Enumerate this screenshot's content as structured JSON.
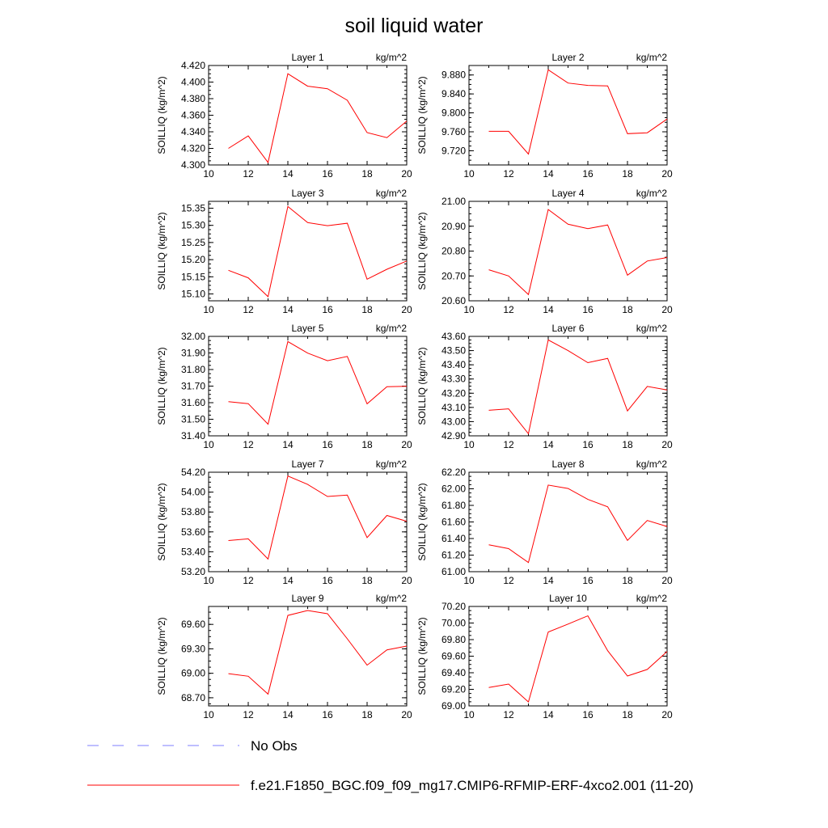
{
  "figure": {
    "title": "soil liquid water",
    "x_ticks": [
      10,
      12,
      14,
      16,
      18,
      20
    ],
    "ylabel": "SOILLIQ  (kg/m^2)",
    "unit_label": "kg/m^2"
  },
  "legend": {
    "obs_label": "No Obs",
    "model_label": "f.e21.F1850_BGC.f09_f09_mg17.CMIP6-RFMIP-ERF-4xco2.001 (11-20)",
    "obs_color": "#9999ff",
    "model_color": "#ff0000"
  },
  "chart_data": [
    {
      "type": "line",
      "title": "Layer 1",
      "xlim": [
        10,
        20
      ],
      "ylim": [
        4.3,
        4.42
      ],
      "y_ticks": [
        4.3,
        4.32,
        4.34,
        4.36,
        4.38,
        4.4,
        4.42
      ],
      "y_tick_labels": [
        "4.300",
        "4.320",
        "4.340",
        "4.360",
        "4.380",
        "4.400",
        "4.420"
      ],
      "x": [
        11,
        12,
        13,
        14,
        15,
        16,
        17,
        18,
        19,
        20
      ],
      "values": [
        4.32,
        4.335,
        4.303,
        4.41,
        4.395,
        4.392,
        4.378,
        4.339,
        4.333,
        4.353
      ]
    },
    {
      "type": "line",
      "title": "Layer 2",
      "xlim": [
        10,
        20
      ],
      "ylim": [
        9.69,
        9.9
      ],
      "y_ticks": [
        9.72,
        9.76,
        9.8,
        9.84,
        9.88
      ],
      "y_tick_labels": [
        "9.720",
        "9.760",
        "9.800",
        "9.840",
        "9.880"
      ],
      "x": [
        11,
        12,
        13,
        14,
        15,
        16,
        17,
        18,
        19,
        20
      ],
      "values": [
        9.761,
        9.761,
        9.713,
        9.891,
        9.863,
        9.858,
        9.857,
        9.756,
        9.758,
        9.787
      ]
    },
    {
      "type": "line",
      "title": "Layer 3",
      "xlim": [
        10,
        20
      ],
      "ylim": [
        15.08,
        15.37
      ],
      "y_ticks": [
        15.1,
        15.15,
        15.2,
        15.25,
        15.3,
        15.35
      ],
      "y_tick_labels": [
        "15.10",
        "15.15",
        "15.20",
        "15.25",
        "15.30",
        "15.35"
      ],
      "x": [
        11,
        12,
        13,
        14,
        15,
        16,
        17,
        18,
        19,
        20
      ],
      "values": [
        15.169,
        15.147,
        15.092,
        15.355,
        15.308,
        15.299,
        15.306,
        15.143,
        15.172,
        15.196
      ]
    },
    {
      "type": "line",
      "title": "Layer 4",
      "xlim": [
        10,
        20
      ],
      "ylim": [
        20.6,
        21.0
      ],
      "y_ticks": [
        20.6,
        20.7,
        20.8,
        20.9,
        21.0
      ],
      "y_tick_labels": [
        "20.60",
        "20.70",
        "20.80",
        "20.90",
        "21.00"
      ],
      "x": [
        11,
        12,
        13,
        14,
        15,
        16,
        17,
        18,
        19,
        20
      ],
      "values": [
        20.725,
        20.7,
        20.625,
        20.967,
        20.908,
        20.89,
        20.905,
        20.703,
        20.76,
        20.774
      ]
    },
    {
      "type": "line",
      "title": "Layer 5",
      "xlim": [
        10,
        20
      ],
      "ylim": [
        31.4,
        32.0
      ],
      "y_ticks": [
        31.4,
        31.5,
        31.6,
        31.7,
        31.8,
        31.9,
        32.0
      ],
      "y_tick_labels": [
        "31.40",
        "31.50",
        "31.60",
        "31.70",
        "31.80",
        "31.90",
        "32.00"
      ],
      "x": [
        11,
        12,
        13,
        14,
        15,
        16,
        17,
        18,
        19,
        20
      ],
      "values": [
        31.606,
        31.594,
        31.47,
        31.969,
        31.899,
        31.853,
        31.879,
        31.593,
        31.696,
        31.699
      ]
    },
    {
      "type": "line",
      "title": "Layer 6",
      "xlim": [
        10,
        20
      ],
      "ylim": [
        42.9,
        43.6
      ],
      "y_ticks": [
        42.9,
        43.0,
        43.1,
        43.2,
        43.3,
        43.4,
        43.5,
        43.6
      ],
      "y_tick_labels": [
        "42.90",
        "43.00",
        "43.10",
        "43.20",
        "43.30",
        "43.40",
        "43.50",
        "43.60"
      ],
      "x": [
        11,
        12,
        13,
        14,
        15,
        16,
        17,
        18,
        19,
        20
      ],
      "values": [
        43.08,
        43.09,
        42.915,
        43.575,
        43.5,
        43.415,
        43.445,
        43.075,
        43.248,
        43.223
      ]
    },
    {
      "type": "line",
      "title": "Layer 7",
      "xlim": [
        10,
        20
      ],
      "ylim": [
        53.2,
        54.2
      ],
      "y_ticks": [
        53.2,
        53.4,
        53.6,
        53.8,
        54.0,
        54.2
      ],
      "y_tick_labels": [
        "53.20",
        "53.40",
        "53.60",
        "53.80",
        "54.00",
        "54.20"
      ],
      "x": [
        11,
        12,
        13,
        14,
        15,
        16,
        17,
        18,
        19,
        20
      ],
      "values": [
        53.513,
        53.53,
        53.327,
        54.162,
        54.077,
        53.956,
        53.97,
        53.543,
        53.765,
        53.707
      ]
    },
    {
      "type": "line",
      "title": "Layer 8",
      "xlim": [
        10,
        20
      ],
      "ylim": [
        61.0,
        62.2
      ],
      "y_ticks": [
        61.0,
        61.2,
        61.4,
        61.6,
        61.8,
        62.0,
        62.2
      ],
      "y_tick_labels": [
        "61.00",
        "61.20",
        "61.40",
        "61.60",
        "61.80",
        "62.00",
        "62.20"
      ],
      "x": [
        11,
        12,
        13,
        14,
        15,
        16,
        17,
        18,
        19,
        20
      ],
      "values": [
        61.325,
        61.278,
        61.11,
        62.045,
        62.004,
        61.872,
        61.782,
        61.378,
        61.618,
        61.545
      ]
    },
    {
      "type": "line",
      "title": "Layer 9",
      "xlim": [
        10,
        20
      ],
      "ylim": [
        68.6,
        69.82
      ],
      "y_ticks": [
        68.7,
        69.0,
        69.3,
        69.6
      ],
      "y_tick_labels": [
        "68.70",
        "69.00",
        "69.30",
        "69.60"
      ],
      "x": [
        11,
        12,
        13,
        14,
        15,
        16,
        17,
        18,
        19,
        20
      ],
      "values": [
        68.996,
        68.964,
        68.745,
        69.71,
        69.77,
        69.731,
        69.423,
        69.1,
        69.287,
        69.334
      ]
    },
    {
      "type": "line",
      "title": "Layer 10",
      "xlim": [
        10,
        20
      ],
      "ylim": [
        69.0,
        70.2
      ],
      "y_ticks": [
        69.0,
        69.2,
        69.4,
        69.6,
        69.8,
        70.0,
        70.2
      ],
      "y_tick_labels": [
        "69.00",
        "69.20",
        "69.40",
        "69.60",
        "69.80",
        "70.00",
        "70.20"
      ],
      "x": [
        11,
        12,
        13,
        14,
        15,
        16,
        17,
        18,
        19,
        20
      ],
      "values": [
        69.222,
        69.263,
        69.048,
        69.892,
        69.987,
        70.087,
        69.666,
        69.361,
        69.44,
        69.656
      ]
    }
  ]
}
